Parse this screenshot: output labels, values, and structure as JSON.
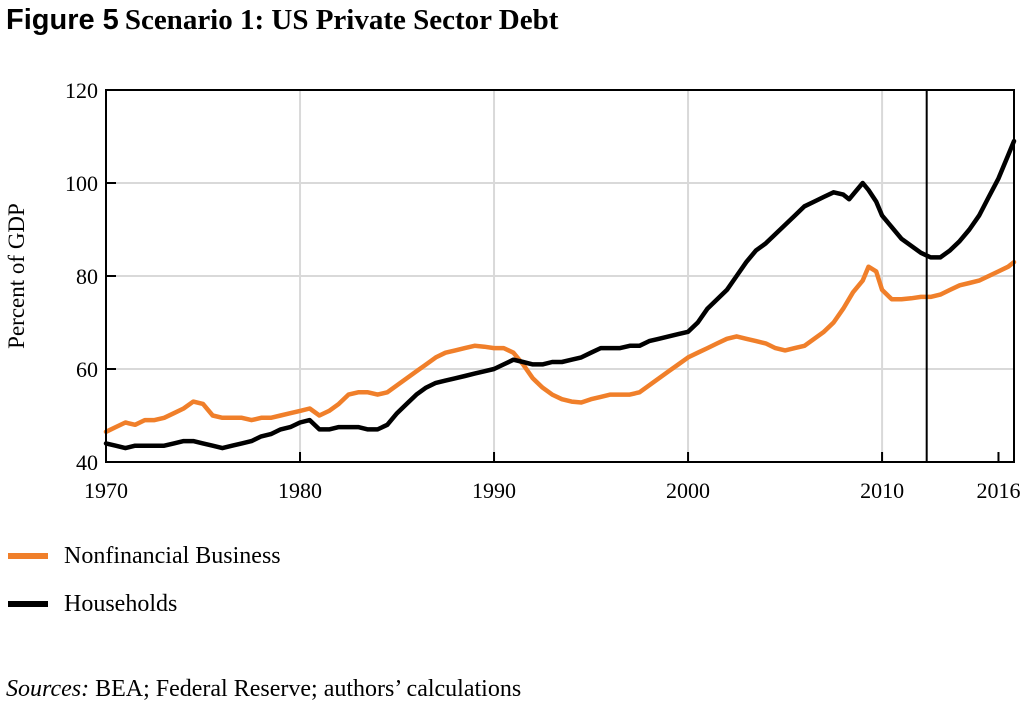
{
  "header": {
    "figure_label": "Figure 5",
    "title": "Scenario 1: US Private Sector Debt"
  },
  "sources": {
    "prefix": "Sources:",
    "text": " BEA; Federal Reserve; authors’ calculations"
  },
  "chart_data": {
    "type": "line",
    "title": "Scenario 1: US Private Sector Debt",
    "xlabel": "",
    "ylabel": "Percent of GDP",
    "xlim": [
      1970,
      2016.8
    ],
    "ylim": [
      40,
      120
    ],
    "x_ticks": [
      1970,
      1980,
      1990,
      2000,
      2010,
      2016
    ],
    "y_ticks": [
      40,
      60,
      80,
      100,
      120
    ],
    "grid": true,
    "legend_position": "bottom-left",
    "vertical_marker_x": 2012.3,
    "series": [
      {
        "name": "Nonfinancial Business",
        "color": "#f07f2a",
        "x": [
          1970,
          1970.5,
          1971,
          1971.5,
          1972,
          1972.5,
          1973,
          1973.5,
          1974,
          1974.5,
          1975,
          1975.5,
          1976,
          1976.5,
          1977,
          1977.5,
          1978,
          1978.5,
          1979,
          1979.5,
          1980,
          1980.5,
          1981,
          1981.5,
          1982,
          1982.5,
          1983,
          1983.5,
          1984,
          1984.5,
          1985,
          1985.5,
          1986,
          1986.5,
          1987,
          1987.5,
          1988,
          1988.5,
          1989,
          1989.5,
          1990,
          1990.5,
          1991,
          1991.5,
          1992,
          1992.5,
          1993,
          1993.5,
          1994,
          1994.5,
          1995,
          1995.5,
          1996,
          1996.5,
          1997,
          1997.5,
          1998,
          1998.5,
          1999,
          1999.5,
          2000,
          2000.5,
          2001,
          2001.5,
          2002,
          2002.5,
          2003,
          2003.5,
          2004,
          2004.5,
          2005,
          2005.5,
          2006,
          2006.5,
          2007,
          2007.5,
          2008,
          2008.5,
          2009,
          2009.3,
          2009.7,
          2010,
          2010.5,
          2011,
          2011.5,
          2012,
          2012.5,
          2013,
          2013.5,
          2014,
          2014.5,
          2015,
          2015.5,
          2016,
          2016.5,
          2016.8
        ],
        "y": [
          46.5,
          47.5,
          48.5,
          48.0,
          49.0,
          49.0,
          49.5,
          50.5,
          51.5,
          53.0,
          52.5,
          50.0,
          49.5,
          49.5,
          49.5,
          49.0,
          49.5,
          49.5,
          50.0,
          50.5,
          51.0,
          51.5,
          50.0,
          51.0,
          52.5,
          54.5,
          55.0,
          55.0,
          54.5,
          55.0,
          56.5,
          58.0,
          59.5,
          61.0,
          62.5,
          63.5,
          64.0,
          64.5,
          65.0,
          64.8,
          64.5,
          64.5,
          63.5,
          61.0,
          58.0,
          56.0,
          54.5,
          53.5,
          53.0,
          52.8,
          53.5,
          54.0,
          54.5,
          54.5,
          54.5,
          55.0,
          56.5,
          58.0,
          59.5,
          61.0,
          62.5,
          63.5,
          64.5,
          65.5,
          66.5,
          67.0,
          66.5,
          66.0,
          65.5,
          64.5,
          64.0,
          64.5,
          65.0,
          66.5,
          68.0,
          70.0,
          73.0,
          76.5,
          79.0,
          82.0,
          81.0,
          77.0,
          75.0,
          75.0,
          75.2,
          75.5,
          75.5,
          76.0,
          77.0,
          78.0,
          78.5,
          79.0,
          80.0,
          81.0,
          82.0,
          83.0
        ]
      },
      {
        "name": "Households",
        "color": "#000000",
        "x": [
          1970,
          1970.5,
          1971,
          1971.5,
          1972,
          1972.5,
          1973,
          1973.5,
          1974,
          1974.5,
          1975,
          1975.5,
          1976,
          1976.5,
          1977,
          1977.5,
          1978,
          1978.5,
          1979,
          1979.5,
          1980,
          1980.5,
          1981,
          1981.5,
          1982,
          1982.5,
          1983,
          1983.5,
          1984,
          1984.5,
          1985,
          1985.5,
          1986,
          1986.5,
          1987,
          1987.5,
          1988,
          1988.5,
          1989,
          1989.5,
          1990,
          1990.5,
          1991,
          1991.5,
          1992,
          1992.5,
          1993,
          1993.5,
          1994,
          1994.5,
          1995,
          1995.5,
          1996,
          1996.5,
          1997,
          1997.5,
          1998,
          1998.5,
          1999,
          1999.5,
          2000,
          2000.5,
          2001,
          2001.5,
          2002,
          2002.5,
          2003,
          2003.5,
          2004,
          2004.5,
          2005,
          2005.5,
          2006,
          2006.5,
          2007,
          2007.5,
          2008,
          2008.3,
          2008.6,
          2009,
          2009.3,
          2009.7,
          2010,
          2010.5,
          2011,
          2011.5,
          2012,
          2012.5,
          2013,
          2013.5,
          2014,
          2014.5,
          2015,
          2015.5,
          2016,
          2016.5,
          2016.8
        ],
        "y": [
          44.0,
          43.5,
          43.0,
          43.5,
          43.5,
          43.5,
          43.5,
          44.0,
          44.5,
          44.5,
          44.0,
          43.5,
          43.0,
          43.5,
          44.0,
          44.5,
          45.5,
          46.0,
          47.0,
          47.5,
          48.5,
          49.0,
          47.0,
          47.0,
          47.5,
          47.5,
          47.5,
          47.0,
          47.0,
          48.0,
          50.5,
          52.5,
          54.5,
          56.0,
          57.0,
          57.5,
          58.0,
          58.5,
          59.0,
          59.5,
          60.0,
          61.0,
          62.0,
          61.5,
          61.0,
          61.0,
          61.5,
          61.5,
          62.0,
          62.5,
          63.5,
          64.5,
          64.5,
          64.5,
          65.0,
          65.0,
          66.0,
          66.5,
          67.0,
          67.5,
          68.0,
          70.0,
          73.0,
          75.0,
          77.0,
          80.0,
          83.0,
          85.5,
          87.0,
          89.0,
          91.0,
          93.0,
          95.0,
          96.0,
          97.0,
          98.0,
          97.5,
          96.5,
          98.0,
          100.0,
          98.5,
          96.0,
          93.0,
          90.5,
          88.0,
          86.5,
          85.0,
          84.0,
          84.0,
          85.5,
          87.5,
          90.0,
          93.0,
          97.0,
          101.0,
          106.0,
          109.0
        ]
      }
    ]
  }
}
